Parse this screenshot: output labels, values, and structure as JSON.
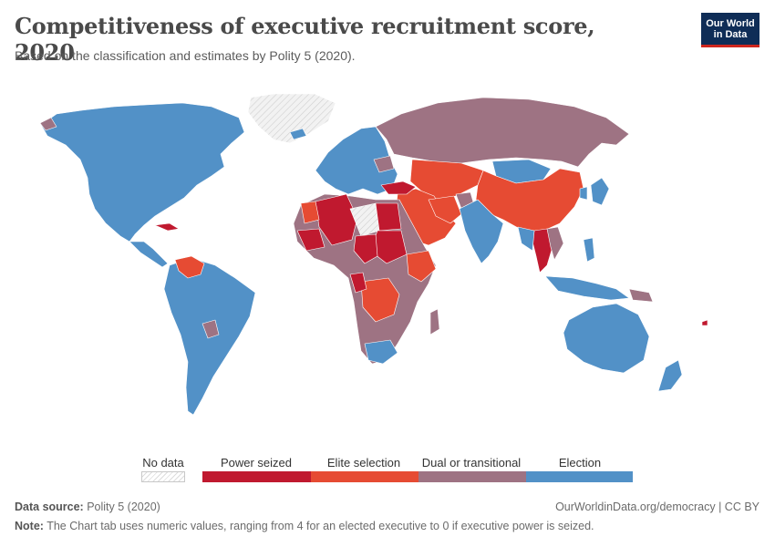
{
  "header": {
    "title": "Competitiveness of executive recruitment score, 2020",
    "subtitle": "Based on the classification and estimates by Polity 5 (2020)."
  },
  "logo": {
    "line1": "Our World",
    "line2": "in Data"
  },
  "colors": {
    "ocean": "#ffffff",
    "no_data": "#e6e6e6",
    "power_seized": "#c0192f",
    "elite_selection": "#e64b33",
    "dual_transitional": "#9e7383",
    "election": "#5291c7",
    "border": "#ffffff"
  },
  "legend": {
    "no_data": "No data",
    "power_seized": "Power seized",
    "elite_selection": "Elite selection",
    "dual_transitional": "Dual or transitional",
    "election": "Election"
  },
  "footer": {
    "source_label": "Data source:",
    "source": "Polity 5 (2020)",
    "credit": "OurWorldinData.org/democracy | CC BY",
    "note_label": "Note:",
    "note": "The Chart tab uses numeric values, ranging from 4 for an elected executive to 0 if executive power is seized."
  }
}
